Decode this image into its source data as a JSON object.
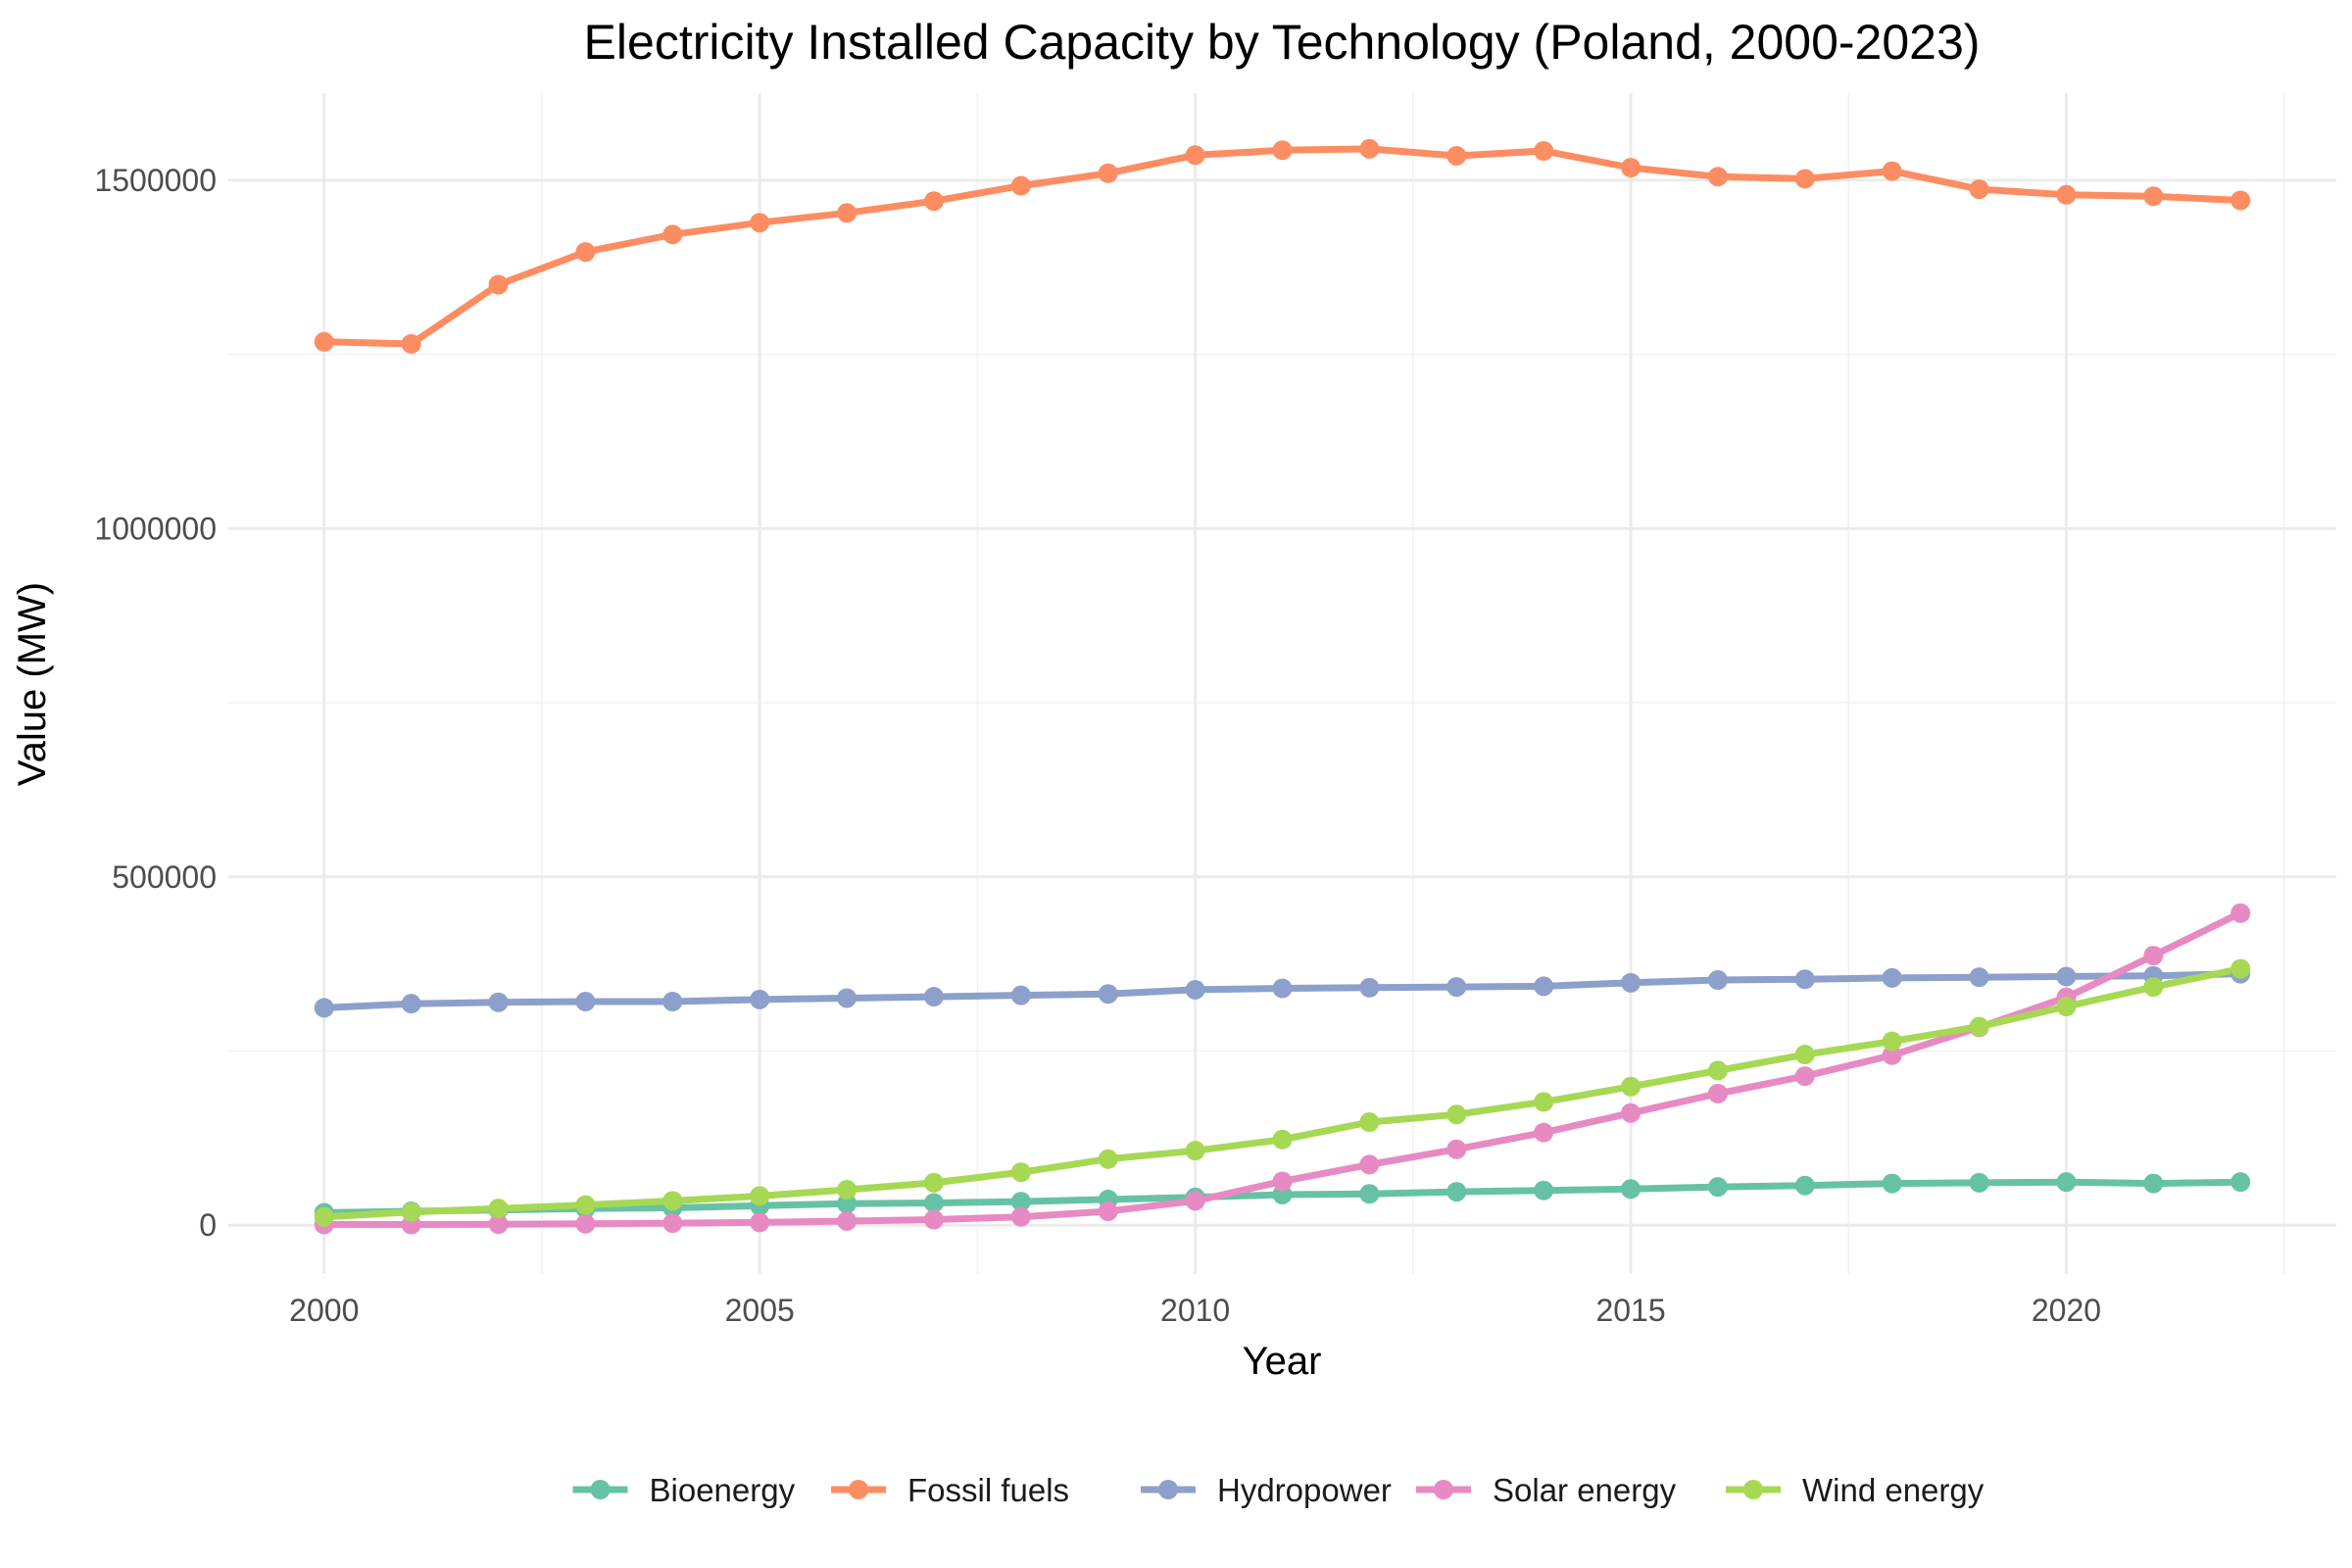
{
  "chart_data": {
    "type": "line",
    "title": "Electricity Installed Capacity by Technology (Poland, 2000-2023)",
    "xlabel": "Year",
    "ylabel": "Value (MW)",
    "xlim": [
      1998.9,
      2023.1
    ],
    "ylim": [
      -70000,
      1625000
    ],
    "x_ticks": [
      2000,
      2005,
      2010,
      2015,
      2020
    ],
    "y_ticks": [
      0,
      500000,
      1000000,
      1500000
    ],
    "y_tick_labels": [
      "0",
      "500000",
      "1000000",
      "1500000"
    ],
    "grid": true,
    "legend_position": "bottom",
    "x": [
      2000,
      2001,
      2002,
      2003,
      2004,
      2005,
      2006,
      2007,
      2008,
      2009,
      2010,
      2011,
      2012,
      2013,
      2014,
      2015,
      2016,
      2017,
      2018,
      2019,
      2020,
      2021,
      2022
    ],
    "series": [
      {
        "name": "Bioenergy",
        "color": "#66c2a5",
        "values": [
          18000,
          20000,
          22000,
          24000,
          25000,
          28000,
          31000,
          32000,
          34000,
          37000,
          40000,
          44000,
          45000,
          48000,
          50000,
          52000,
          55000,
          57000,
          60000,
          61000,
          62000,
          60000,
          62000
        ]
      },
      {
        "name": "Fossil fuels",
        "color": "#fc8d62",
        "values": [
          1268000,
          1265000,
          1350000,
          1397000,
          1422000,
          1439000,
          1453000,
          1470000,
          1492000,
          1510000,
          1536000,
          1543000,
          1545000,
          1535000,
          1542000,
          1518000,
          1505000,
          1502000,
          1513000,
          1487000,
          1479000,
          1477000,
          1471000
        ]
      },
      {
        "name": "Hydropower",
        "color": "#8da0cb",
        "values": [
          312000,
          318000,
          320000,
          321000,
          321000,
          324000,
          326000,
          328000,
          330000,
          332000,
          338000,
          340000,
          341000,
          342000,
          343000,
          348000,
          352000,
          353000,
          355000,
          356000,
          357000,
          358000,
          361000
        ]
      },
      {
        "name": "Solar energy",
        "color": "#e78ac3",
        "values": [
          1000,
          1000,
          1500,
          2000,
          3000,
          4000,
          6000,
          8000,
          12000,
          20000,
          35000,
          63000,
          87000,
          109000,
          133000,
          161000,
          189000,
          214000,
          244000,
          284000,
          327000,
          387000,
          448000
        ]
      },
      {
        "name": "Wind energy",
        "color": "#a6d854",
        "values": [
          12000,
          19000,
          24000,
          29000,
          35000,
          42000,
          51000,
          61000,
          76000,
          95000,
          107000,
          123000,
          148000,
          159000,
          177000,
          199000,
          222000,
          245000,
          264000,
          285000,
          314000,
          342000,
          368000
        ]
      }
    ]
  }
}
